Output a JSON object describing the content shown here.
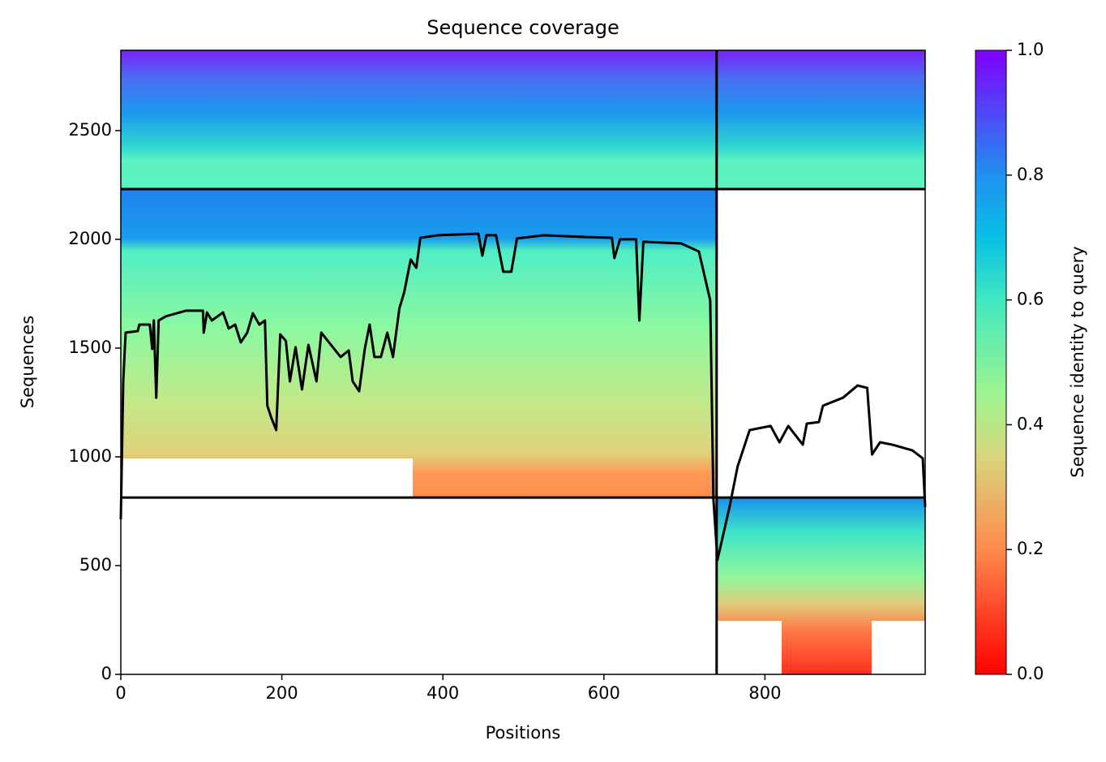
{
  "chart_data": {
    "type": "line",
    "title": "Sequence coverage",
    "xlabel": "Positions",
    "ylabel": "Sequences",
    "xlim": [
      0,
      999
    ],
    "ylim": [
      0,
      2869
    ],
    "xticks": [
      0,
      200,
      400,
      600,
      800
    ],
    "yticks": [
      0,
      500,
      1000,
      1500,
      2000,
      2500
    ],
    "color": "#000000",
    "dividers_x": [
      740
    ],
    "dividers_y": [
      813,
      2231
    ],
    "x": [
      0,
      3,
      6,
      21,
      23,
      36,
      39,
      41,
      44,
      47,
      56,
      81,
      102,
      103,
      107,
      113,
      127,
      134,
      142,
      149,
      157,
      164,
      172,
      179,
      182,
      187,
      193,
      198,
      205,
      210,
      217,
      225,
      233,
      243,
      249,
      261,
      273,
      283,
      288,
      296,
      303,
      309,
      315,
      323,
      331,
      338,
      346,
      352,
      360,
      367,
      372,
      394,
      444,
      449,
      454,
      466,
      475,
      485,
      492,
      525,
      575,
      610,
      613,
      620,
      640,
      644,
      649,
      696,
      718,
      732,
      736,
      741,
      756,
      766,
      781,
      807,
      818,
      829,
      847,
      852,
      867,
      872,
      897,
      915,
      927,
      933,
      943,
      958,
      983,
      996,
      999
    ],
    "values": [
      713,
      1347,
      1571,
      1578,
      1608,
      1608,
      1496,
      1627,
      1272,
      1627,
      1646,
      1672,
      1672,
      1571,
      1664,
      1627,
      1664,
      1590,
      1608,
      1526,
      1571,
      1660,
      1608,
      1627,
      1235,
      1179,
      1123,
      1563,
      1533,
      1347,
      1504,
      1310,
      1515,
      1347,
      1571,
      1515,
      1459,
      1489,
      1347,
      1302,
      1496,
      1608,
      1459,
      1459,
      1571,
      1459,
      1683,
      1757,
      1907,
      1869,
      2007,
      2019,
      2026,
      1925,
      2019,
      2019,
      1851,
      1851,
      2004,
      2019,
      2011,
      2007,
      1914,
      2000,
      2000,
      1627,
      1989,
      1981,
      1944,
      1720,
      806,
      526,
      769,
      955,
      1123,
      1142,
      1067,
      1142,
      1056,
      1153,
      1160,
      1235,
      1272,
      1328,
      1317,
      1011,
      1067,
      1056,
      1030,
      993,
      769
    ],
    "colorbar": {
      "label": "Sequence identity to query",
      "lim": [
        0,
        1
      ],
      "ticks": [
        0.0,
        0.2,
        0.4,
        0.6,
        0.8,
        1.0
      ],
      "tick_labels": [
        "0.0",
        "0.2",
        "0.4",
        "0.6",
        "0.8",
        "1.0"
      ]
    }
  }
}
